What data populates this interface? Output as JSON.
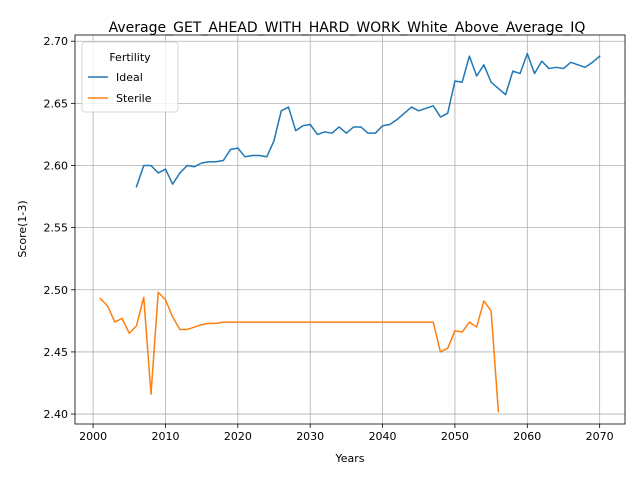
{
  "chart_data": {
    "type": "line",
    "title": "Average_GET_AHEAD_WITH_HARD_WORK_White_Above_Average_IQ",
    "xlabel": "Years",
    "ylabel": "Score(1-3)",
    "xlim": [
      1997.5,
      2073.5
    ],
    "ylim": [
      2.392,
      2.705
    ],
    "xticks": [
      2000,
      2010,
      2020,
      2030,
      2040,
      2050,
      2060,
      2070
    ],
    "yticks": [
      2.4,
      2.45,
      2.5,
      2.55,
      2.6,
      2.65,
      2.7
    ],
    "ytick_labels": [
      "2.40",
      "2.45",
      "2.50",
      "2.55",
      "2.60",
      "2.65",
      "2.70"
    ],
    "grid": true,
    "legend": {
      "title": "Fertility",
      "placement": "top-left"
    },
    "series": [
      {
        "name": "Ideal",
        "color": "#1f77b4",
        "x": [
          2006,
          2007,
          2008,
          2009,
          2010,
          2011,
          2012,
          2013,
          2014,
          2015,
          2016,
          2017,
          2018,
          2019,
          2020,
          2021,
          2022,
          2023,
          2024,
          2025,
          2026,
          2027,
          2028,
          2029,
          2030,
          2031,
          2032,
          2033,
          2034,
          2035,
          2036,
          2037,
          2038,
          2039,
          2040,
          2041,
          2042,
          2043,
          2044,
          2045,
          2046,
          2047,
          2048,
          2049,
          2050,
          2051,
          2052,
          2053,
          2054,
          2055,
          2056,
          2057,
          2058,
          2059,
          2060,
          2061,
          2062,
          2063,
          2064,
          2065,
          2066,
          2067,
          2068,
          2069,
          2070
        ],
        "values": [
          2.583,
          2.6,
          2.6,
          2.594,
          2.597,
          2.585,
          2.594,
          2.6,
          2.599,
          2.602,
          2.603,
          2.603,
          2.604,
          2.613,
          2.614,
          2.607,
          2.608,
          2.608,
          2.607,
          2.62,
          2.644,
          2.647,
          2.628,
          2.632,
          2.633,
          2.625,
          2.627,
          2.626,
          2.631,
          2.626,
          2.631,
          2.631,
          2.626,
          2.626,
          2.632,
          2.633,
          2.637,
          2.642,
          2.647,
          2.644,
          2.646,
          2.648,
          2.639,
          2.642,
          2.668,
          2.667,
          2.688,
          2.672,
          2.681,
          2.667,
          2.662,
          2.657,
          2.676,
          2.674,
          2.69,
          2.674,
          2.684,
          2.678,
          2.679,
          2.678,
          2.683,
          2.681,
          2.679,
          2.683,
          2.688
        ]
      },
      {
        "name": "Sterile",
        "color": "#ff7f0e",
        "x": [
          2001,
          2002,
          2003,
          2004,
          2005,
          2006,
          2007,
          2008,
          2009,
          2010,
          2011,
          2012,
          2013,
          2014,
          2015,
          2016,
          2017,
          2018,
          2019,
          2020,
          2021,
          2022,
          2023,
          2024,
          2025,
          2026,
          2027,
          2028,
          2029,
          2030,
          2031,
          2032,
          2033,
          2034,
          2035,
          2036,
          2037,
          2038,
          2039,
          2040,
          2041,
          2042,
          2043,
          2044,
          2045,
          2046,
          2047,
          2048,
          2049,
          2050,
          2051,
          2052,
          2053,
          2054,
          2055,
          2056
        ],
        "values": [
          2.493,
          2.487,
          2.474,
          2.477,
          2.465,
          2.471,
          2.494,
          2.416,
          2.498,
          2.492,
          2.478,
          2.468,
          2.468,
          2.47,
          2.472,
          2.473,
          2.473,
          2.474,
          2.474,
          2.474,
          2.474,
          2.474,
          2.474,
          2.474,
          2.474,
          2.474,
          2.474,
          2.474,
          2.474,
          2.474,
          2.474,
          2.474,
          2.474,
          2.474,
          2.474,
          2.474,
          2.474,
          2.474,
          2.474,
          2.474,
          2.474,
          2.474,
          2.474,
          2.474,
          2.474,
          2.474,
          2.474,
          2.45,
          2.453,
          2.467,
          2.466,
          2.474,
          2.47,
          2.491,
          2.483,
          2.402
        ]
      }
    ]
  }
}
